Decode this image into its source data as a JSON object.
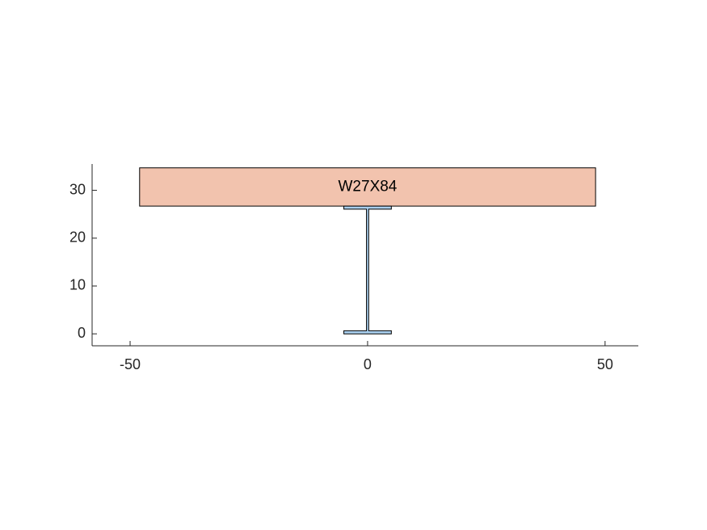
{
  "chart_data": {
    "type": "cross-section",
    "x_ticks": [
      -50,
      0,
      50
    ],
    "y_ticks": [
      0,
      10,
      20,
      30
    ],
    "xlim": [
      -58,
      57
    ],
    "ylim": [
      -2.5,
      35.5
    ],
    "slab": {
      "x_range": [
        -48,
        48
      ],
      "y_range": [
        26.7,
        34.7
      ],
      "color": "#f2c3ae",
      "label": "W27X84",
      "label_position": [
        0,
        30.7
      ]
    },
    "beam": {
      "section": "W27X84",
      "color": "#a9cfee",
      "depth": 26.7,
      "flange_width": 10.0,
      "flange_thickness": 0.64,
      "web_thickness": 0.46
    },
    "colors": {
      "axis": "#262626",
      "outline": "#000000"
    }
  }
}
